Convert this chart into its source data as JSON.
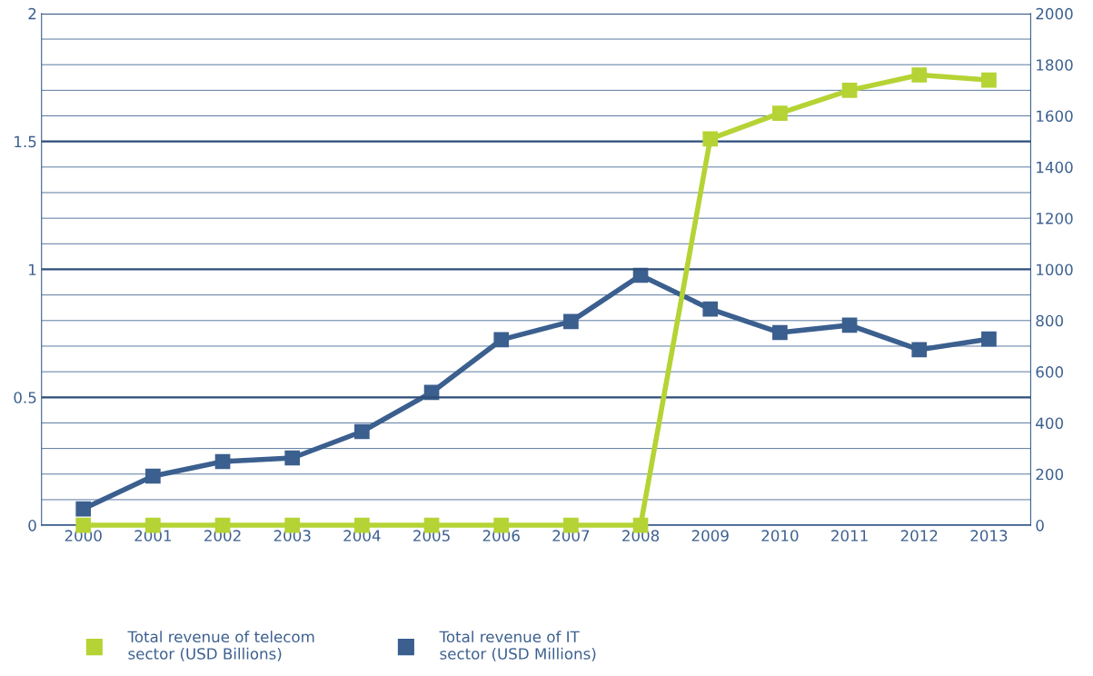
{
  "chart_data": {
    "type": "line",
    "categories": [
      "2000",
      "2001",
      "2002",
      "2003",
      "2004",
      "2005",
      "2006",
      "2007",
      "2008",
      "2009",
      "2010",
      "2011",
      "2012",
      "2013"
    ],
    "series": [
      {
        "name": "Total revenue of telecom\nsector (USD Billions)",
        "color": "#b5d334",
        "values": [
          0,
          0,
          0,
          0,
          0,
          0,
          0,
          0,
          0,
          1.51,
          1.61,
          1.7,
          1.76,
          1.74
        ]
      },
      {
        "name": "Total revenue of IT\nsector (USD Millions)",
        "color": "#3b5f8e",
        "axis": "y2",
        "values": [
          64,
          192,
          249,
          263,
          366,
          519,
          725,
          796,
          977,
          845,
          753,
          782,
          686,
          728
        ]
      }
    ],
    "ylim": [
      0,
      2
    ],
    "yticks": [
      0,
      0.5,
      1,
      1.5,
      2
    ],
    "y2lim": [
      0,
      2000
    ],
    "y2ticks": [
      0,
      {
        "value": 100,
        "label": null
      },
      200,
      {
        "value": 300,
        "label": null
      },
      400,
      {
        "value": 500,
        "label": null
      },
      600,
      {
        "value": 700,
        "label": null
      },
      800,
      {
        "value": 900,
        "label": null
      },
      1000,
      {
        "value": 1100,
        "label": null
      },
      1200,
      {
        "value": 1300,
        "label": null
      },
      1400,
      {
        "value": 1500,
        "label": null
      },
      1600,
      {
        "value": 1700,
        "label": null
      },
      1800,
      {
        "value": 1900,
        "label": null
      },
      2000
    ],
    "grid": "y",
    "legend": "bottom left",
    "marker": "square",
    "line_style": "solid"
  }
}
